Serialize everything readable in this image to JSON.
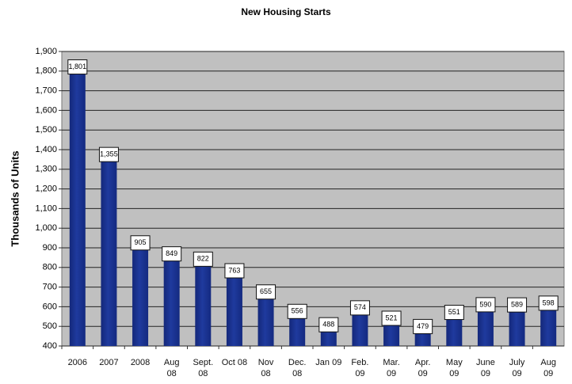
{
  "chart_data": {
    "type": "bar",
    "title": "New Housing Starts",
    "y_label": "Thousands of Units",
    "categories": [
      "2006",
      "2007",
      "2008",
      "Aug 08",
      "Sept. 08",
      "Oct 08",
      "Nov 08",
      "Dec. 08",
      "Jan 09",
      "Feb. 09",
      "Mar. 09",
      "Apr. 09",
      "May 09",
      "June 09",
      "July 09",
      "Aug 09"
    ],
    "values": [
      1801,
      1355,
      905,
      849,
      822,
      763,
      655,
      556,
      488,
      574,
      521,
      479,
      551,
      590,
      589,
      598
    ],
    "value_labels": [
      "1,801",
      "1,355",
      "905",
      "849",
      "822",
      "763",
      "655",
      "556",
      "488",
      "574",
      "521",
      "479",
      "551",
      "590",
      "589",
      "598"
    ],
    "color": "#1f3a9e",
    "ylim": [
      400,
      1900
    ],
    "yticks": [
      400,
      500,
      600,
      700,
      800,
      900,
      {
        "value": 1000,
        "label": "1,000"
      },
      {
        "value": 1100,
        "label": "1,100"
      },
      {
        "value": 1200,
        "label": "1,200"
      },
      {
        "value": 1300,
        "label": "1,300"
      },
      {
        "value": 1400,
        "label": "1,400"
      },
      {
        "value": 1500,
        "label": "1,500"
      },
      {
        "value": 1600,
        "label": "1,600"
      },
      {
        "value": 1700,
        "label": "1,700"
      },
      {
        "value": 1800,
        "label": "1,800"
      },
      {
        "value": 1900,
        "label": "1,900"
      }
    ],
    "grid": true
  }
}
